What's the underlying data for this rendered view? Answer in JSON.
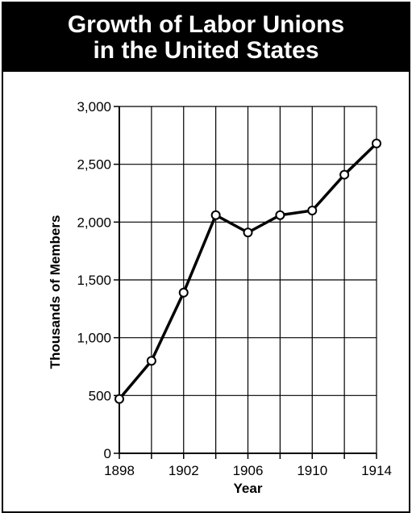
{
  "title_line1": "Growth of Labor Unions",
  "title_line2": "in the United States",
  "chart_data": {
    "type": "line",
    "title": "Growth of Labor Unions in the United States",
    "xlabel": "Year",
    "ylabel": "Thousands of Members",
    "xlim": [
      1898,
      1914
    ],
    "ylim": [
      0,
      3000
    ],
    "x_ticks": [
      1898,
      1902,
      1906,
      1910,
      1914
    ],
    "x_tick_labels": [
      "1898",
      "1902",
      "1906",
      "1910",
      "1914"
    ],
    "x_grid": [
      1898,
      1900,
      1902,
      1904,
      1906,
      1908,
      1910,
      1912,
      1914
    ],
    "y_ticks": [
      0,
      500,
      1000,
      1500,
      2000,
      2500,
      3000
    ],
    "y_tick_labels": [
      "0",
      "500",
      "1,000",
      "1,500",
      "2,000",
      "2,500",
      "3,000"
    ],
    "grid": true,
    "line_color": "#000000",
    "series": [
      {
        "x": [
          1898,
          1900,
          1902,
          1904,
          1906,
          1908,
          1910,
          1912,
          1914
        ],
        "values": [
          470,
          800,
          1390,
          2060,
          1910,
          2060,
          2100,
          2410,
          2680
        ]
      }
    ]
  }
}
